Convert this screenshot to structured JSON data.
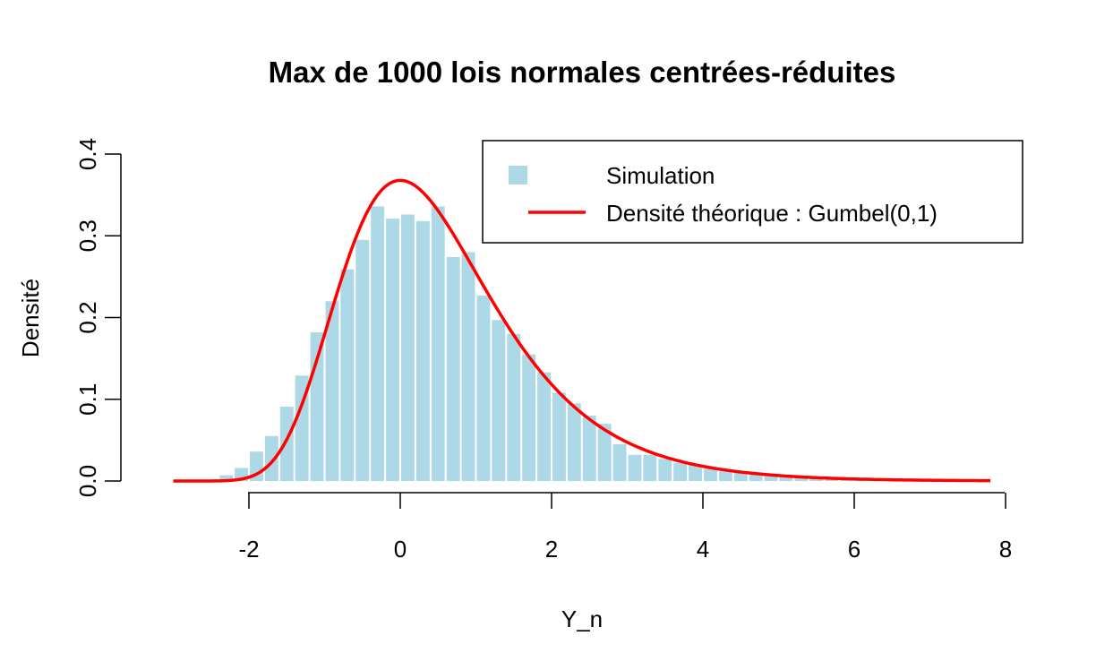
{
  "chart_data": {
    "type": "bar",
    "title": "Max de 1000 lois normales centrées-réduites",
    "xlabel": "Y_n",
    "ylabel": "Densité",
    "xlim": [
      -3,
      8
    ],
    "ylim": [
      0,
      0.4
    ],
    "x_ticks": [
      -2,
      0,
      2,
      4,
      6,
      8
    ],
    "y_ticks": [
      0.0,
      0.1,
      0.2,
      0.3,
      0.4
    ],
    "x_tick_labels": [
      "-2",
      "0",
      "2",
      "4",
      "6",
      "8"
    ],
    "y_tick_labels": [
      "0.0",
      "0.1",
      "0.2",
      "0.3",
      "0.4"
    ],
    "legend_position": "top-right",
    "colors": {
      "bars": "#add8e6",
      "curve": "#ff0000"
    },
    "histogram": {
      "name": "Simulation",
      "bin_width": 0.2,
      "bin_starts": [
        -2.4,
        -2.2,
        -2.0,
        -1.8,
        -1.6,
        -1.4,
        -1.2,
        -1.0,
        -0.8,
        -0.6,
        -0.4,
        -0.2,
        0.0,
        0.2,
        0.4,
        0.6,
        0.8,
        1.0,
        1.2,
        1.4,
        1.6,
        1.8,
        2.0,
        2.2,
        2.4,
        2.6,
        2.8,
        3.0,
        3.2,
        3.4,
        3.6,
        3.8,
        4.0,
        4.2,
        4.4,
        4.6,
        4.8,
        5.0,
        5.2,
        5.4,
        5.6,
        5.8,
        6.0,
        6.2,
        6.4,
        6.6,
        6.8
      ],
      "values": [
        0.007,
        0.016,
        0.036,
        0.055,
        0.091,
        0.129,
        0.182,
        0.22,
        0.259,
        0.295,
        0.336,
        0.321,
        0.326,
        0.318,
        0.336,
        0.274,
        0.28,
        0.227,
        0.197,
        0.18,
        0.155,
        0.133,
        0.108,
        0.095,
        0.08,
        0.07,
        0.045,
        0.032,
        0.032,
        0.027,
        0.022,
        0.02,
        0.015,
        0.012,
        0.01,
        0.008,
        0.006,
        0.005,
        0.004,
        0.003,
        0.003,
        0.002,
        0.002,
        0.002,
        0.001,
        0.001,
        0.001
      ]
    },
    "curve": {
      "name": "Densité théorique : Gumbel(0,1)",
      "x_from": -3,
      "x_to": 7.8,
      "x_step": 0.05
    }
  }
}
